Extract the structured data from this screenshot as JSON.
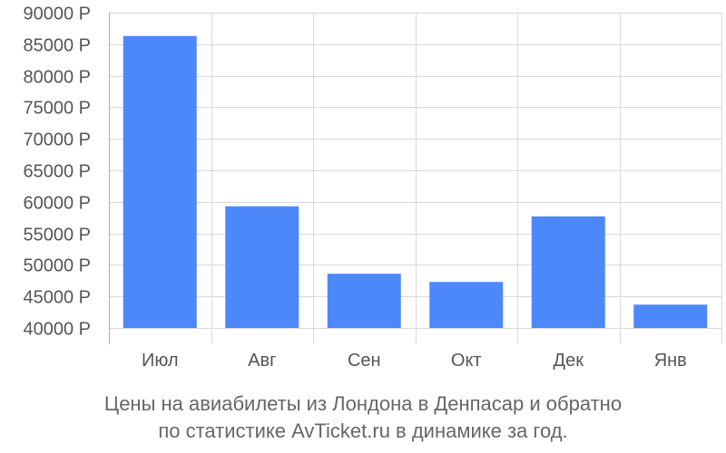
{
  "chart_data": {
    "type": "bar",
    "categories": [
      "Июл",
      "Авг",
      "Сен",
      "Окт",
      "Дек",
      "Янв"
    ],
    "values": [
      86300,
      59300,
      48600,
      47300,
      57700,
      43700
    ],
    "ylim": [
      40000,
      90000
    ],
    "yticks": [
      40000,
      45000,
      50000,
      55000,
      60000,
      65000,
      70000,
      75000,
      80000,
      85000,
      90000
    ],
    "y_suffix": " Р",
    "title": "",
    "xlabel": "",
    "ylabel": "",
    "grid": true,
    "colors": {
      "bar": "#4d88fb",
      "grid": "#d9d9d9",
      "axis": "#b0b0b0",
      "tick_text": "#555555"
    }
  },
  "caption": {
    "line1": "Цены на авиабилеты из Лондона в Денпасар и обратно",
    "line2": "по статистике AvTicket.ru в динамике за год."
  }
}
